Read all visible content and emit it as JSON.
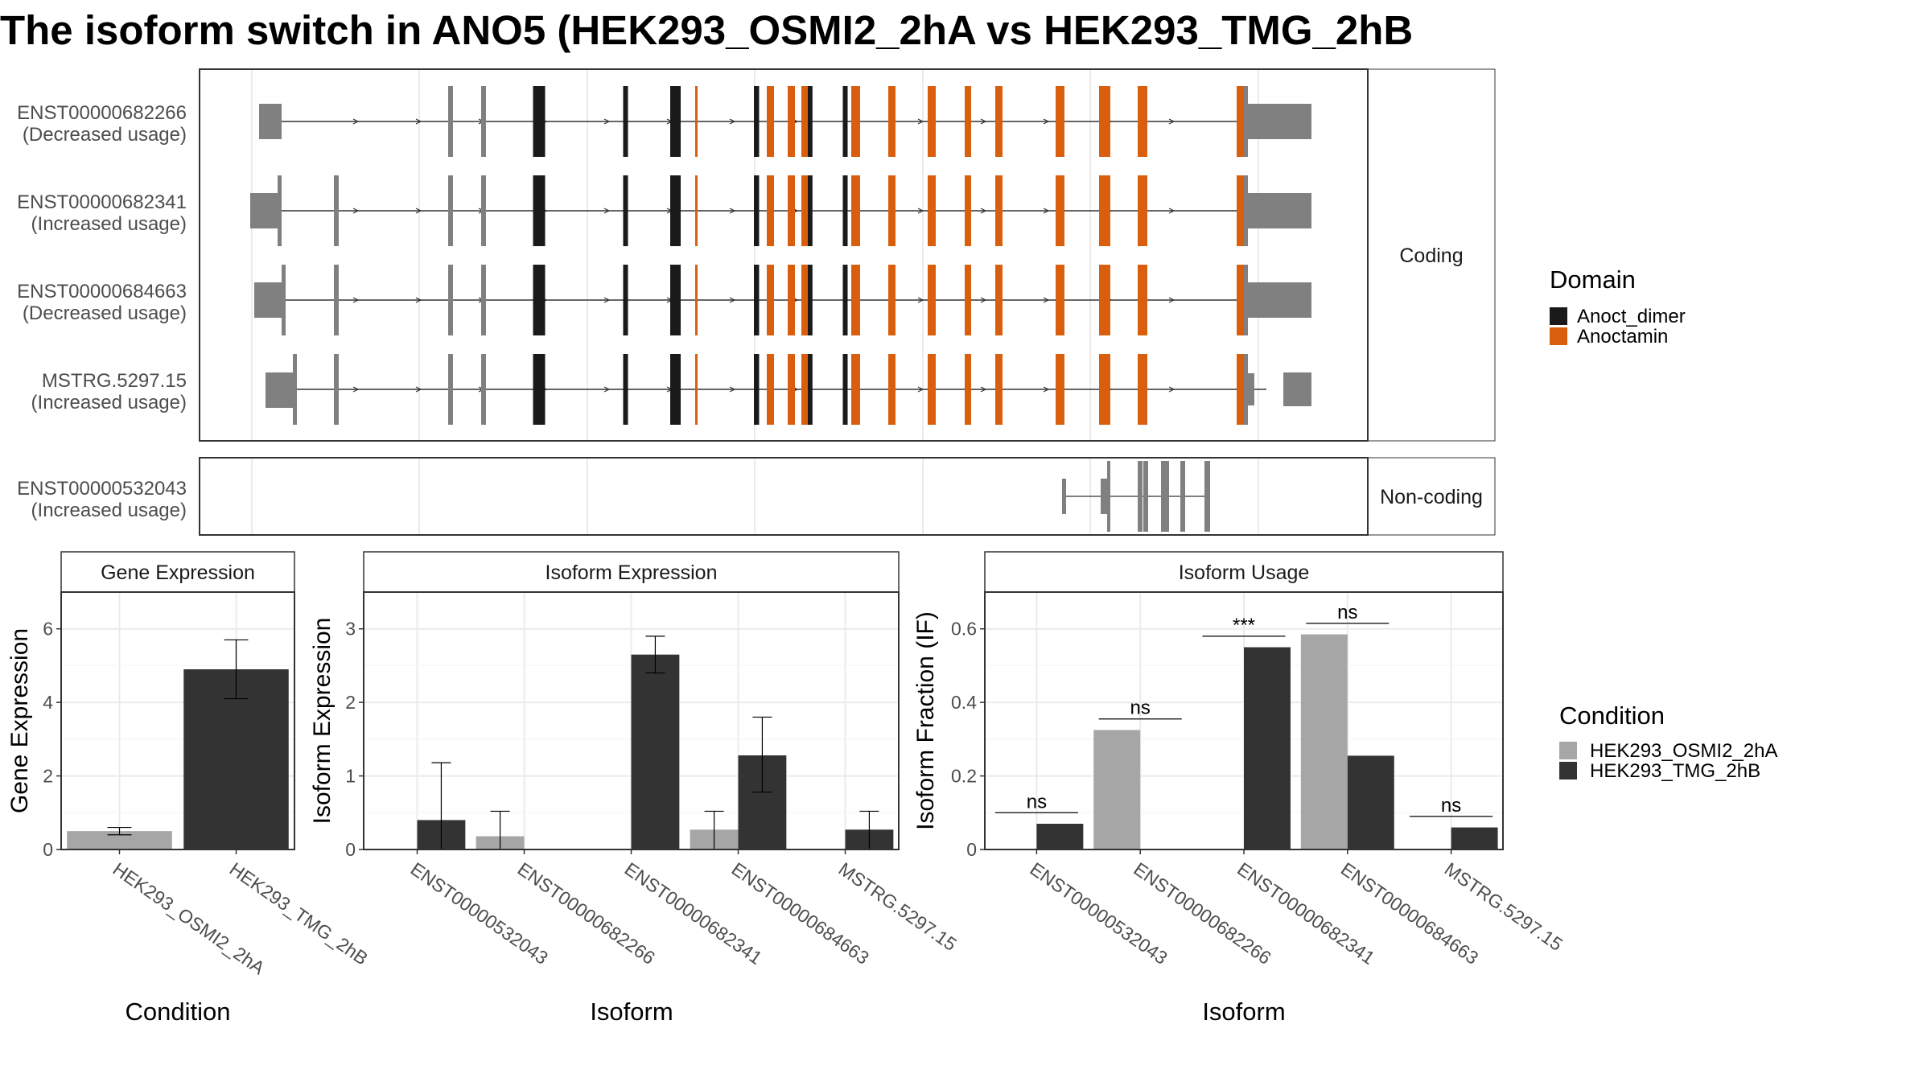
{
  "title": "The isoform switch in ANO5 (HEK293_OSMI2_2hA vs HEK293_TMG_2hB",
  "colors": {
    "anoct_dimer": "#1a1a1a",
    "anoctamin": "#d95f0e",
    "noncoding": "#808080",
    "utr": "#808080",
    "cond1": "#a6a6a6",
    "cond2": "#333333"
  },
  "structure": {
    "coding_label": "Coding",
    "noncoding_label": "Non-coding",
    "domain_legend": {
      "title": "Domain",
      "items": [
        {
          "name": "Anoct_dimer",
          "color": "#1a1a1a"
        },
        {
          "name": "Anoctamin",
          "color": "#d95f0e"
        }
      ]
    },
    "isoforms": [
      {
        "id": "ENST00000682266",
        "change": "(Decreased usage)",
        "group": "coding",
        "utr_start": 1.0,
        "cds_start": 3.0,
        "cds_end": 97.0,
        "utr_end": 102.0
      },
      {
        "id": "ENST00000682341",
        "change": "(Increased usage)",
        "group": "coding",
        "utr_start": -1.0,
        "cds_start": 2.5,
        "cds_end": 98.0,
        "utr_end": 102.0
      },
      {
        "id": "ENST00000684663",
        "change": "(Decreased usage)",
        "group": "coding",
        "utr_start": 0.0,
        "cds_start": 2.5,
        "cds_end": 98.0,
        "utr_end": 102.0
      },
      {
        "id": "MSTRG.5297.15",
        "change": "(Increased usage)",
        "group": "coding",
        "utr_start": 1.5,
        "cds_start": 2.5,
        "cds_end": 98.0,
        "utr_end": 102.0
      },
      {
        "id": "ENST00000532043",
        "change": "(Increased usage)",
        "group": "noncoding"
      }
    ]
  },
  "chart_data": [
    {
      "type": "bar",
      "title": "Gene Expression",
      "xlabel": "Condition",
      "ylabel": "Gene Expression",
      "ylim": [
        0,
        7
      ],
      "yticks": [
        0,
        2,
        4,
        6
      ],
      "categories": [
        "HEK293_OSMI2_2hA",
        "HEK293_TMG_2hB"
      ],
      "values": [
        0.5,
        4.9
      ],
      "error": [
        [
          0.4,
          0.6
        ],
        [
          4.1,
          5.7
        ]
      ]
    },
    {
      "type": "bar",
      "title": "Isoform Expression",
      "xlabel": "Isoform",
      "ylabel": "Isoform Expression",
      "ylim": [
        0,
        3.5
      ],
      "yticks": [
        0,
        1,
        2,
        3
      ],
      "categories": [
        "ENST00000532043",
        "ENST00000682266",
        "ENST00000682341",
        "ENST00000684663",
        "MSTRG.5297.15"
      ],
      "series": [
        {
          "name": "HEK293_OSMI2_2hA",
          "values": [
            0,
            0.18,
            0,
            0.27,
            0
          ],
          "error": [
            null,
            [
              0,
              0.52
            ],
            null,
            [
              0,
              0.52
            ],
            null
          ]
        },
        {
          "name": "HEK293_TMG_2hB",
          "values": [
            0.4,
            0,
            2.65,
            1.28,
            0.27
          ],
          "error": [
            [
              0,
              1.18
            ],
            null,
            [
              2.4,
              2.9
            ],
            [
              0.78,
              1.8
            ],
            [
              0,
              0.52
            ]
          ]
        }
      ]
    },
    {
      "type": "bar",
      "title": "Isoform Usage",
      "xlabel": "Isoform",
      "ylabel": "Isoform Fraction (IF)",
      "ylim": [
        0,
        0.7
      ],
      "yticks": [
        0.0,
        0.2,
        0.4,
        0.6
      ],
      "categories": [
        "ENST00000532043",
        "ENST00000682266",
        "ENST00000682341",
        "ENST00000684663",
        "MSTRG.5297.15"
      ],
      "series": [
        {
          "name": "HEK293_OSMI2_2hA",
          "values": [
            0,
            0.325,
            0,
            0.585,
            0
          ]
        },
        {
          "name": "HEK293_TMG_2hB",
          "values": [
            0.07,
            0,
            0.55,
            0.255,
            0.06
          ]
        }
      ],
      "annotations": [
        "ns",
        "ns",
        "***",
        "ns",
        "ns"
      ]
    }
  ],
  "condition_legend": {
    "title": "Condition",
    "items": [
      {
        "name": "HEK293_OSMI2_2hA",
        "color": "#a6a6a6"
      },
      {
        "name": "HEK293_TMG_2hB",
        "color": "#333333"
      }
    ]
  }
}
